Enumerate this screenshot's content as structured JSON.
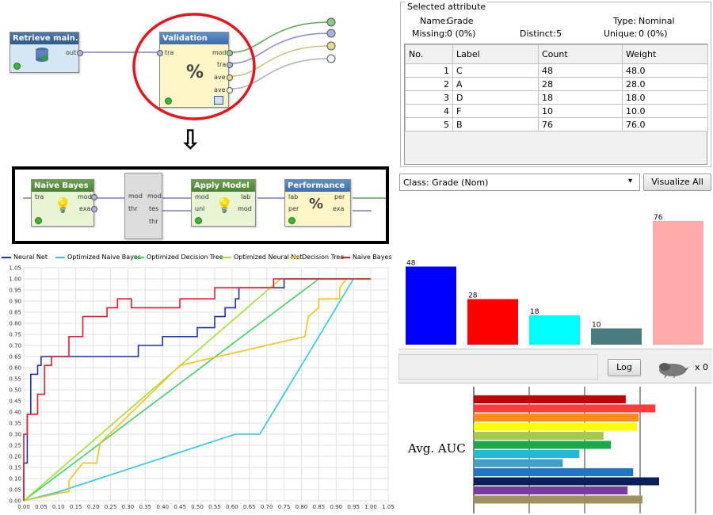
{
  "process": {
    "retrieve": {
      "title": "Retrieve main...",
      "out_port": "out"
    },
    "validation": {
      "title": "Validation",
      "in_ports": [
        "tra"
      ],
      "out_ports": [
        "mod",
        "tra",
        "ave",
        "ave"
      ],
      "icon_glyph": "%"
    },
    "arrow_glyph": "⇩",
    "inner": {
      "naive_bayes": {
        "title": "Naive Bayes",
        "in_ports": [
          "tra"
        ],
        "out_ports": [
          "mod",
          "exa"
        ]
      },
      "split": {
        "in_ports": [
          "mod",
          "thr"
        ],
        "out_ports": [
          "mod",
          "tes",
          "thr"
        ]
      },
      "apply_model": {
        "title": "Apply Model",
        "in_ports": [
          "mod",
          "unl"
        ],
        "out_ports": [
          "lab",
          "mod"
        ]
      },
      "performance": {
        "title": "Performance",
        "in_ports": [
          "lab",
          "per"
        ],
        "out_ports": [
          "per",
          "exa"
        ],
        "icon_glyph": "%"
      }
    }
  },
  "roc_chart": {
    "type": "line",
    "legend": [
      {
        "name": "Neural Net",
        "color": "#1f2fb8"
      },
      {
        "name": "Optimized Naive Bayes",
        "color": "#2ec6e8"
      },
      {
        "name": "Optimized Decision Tree",
        "color": "#3ed16a"
      },
      {
        "name": "Optimized Neural Net",
        "color": "#9ee336"
      },
      {
        "name": "Decision Tree",
        "color": "#f3c21b"
      },
      {
        "name": "Naive Bayes",
        "color": "#e11d2d"
      }
    ],
    "x_ticks": [
      "0.00",
      "0.05",
      "0.10",
      "0.15",
      "0.20",
      "0.25",
      "0.30",
      "0.35",
      "0.40",
      "0.45",
      "0.50",
      "0.55",
      "0.60",
      "0.65",
      "0.70",
      "0.75",
      "0.80",
      "0.85",
      "0.90",
      "0.95",
      "1.00",
      "1.05"
    ],
    "y_ticks": [
      "0.00",
      "0.05",
      "0.10",
      "0.15",
      "0.20",
      "0.25",
      "0.30",
      "0.35",
      "0.40",
      "0.45",
      "0.50",
      "0.55",
      "0.60",
      "0.65",
      "0.70",
      "0.75",
      "0.80",
      "0.85",
      "0.90",
      "0.95",
      "1.00",
      "1.05"
    ],
    "xlim": [
      0,
      1.05
    ],
    "ylim": [
      0,
      1.05
    ],
    "grid": true,
    "series": [
      {
        "name": "Neural Net",
        "color": "#1f2fb8",
        "x": [
          0,
          0,
          0.01,
          0.01,
          0.02,
          0.02,
          0.04,
          0.04,
          0.05,
          0.05,
          0.33,
          0.33,
          0.4,
          0.4,
          0.5,
          0.5,
          0.55,
          0.55,
          0.58,
          0.58,
          0.61,
          0.61,
          0.62,
          0.62,
          0.75,
          0.75,
          0.85,
          1.0
        ],
        "y": [
          0,
          0.17,
          0.17,
          0.39,
          0.39,
          0.57,
          0.57,
          0.61,
          0.61,
          0.65,
          0.65,
          0.7,
          0.7,
          0.74,
          0.74,
          0.78,
          0.78,
          0.83,
          0.83,
          0.87,
          0.87,
          0.91,
          0.91,
          0.96,
          0.96,
          1.0,
          1.0,
          1.0
        ]
      },
      {
        "name": "Optimized Naive Bayes",
        "color": "#2ec6e8",
        "x": [
          0,
          0.1,
          0.61,
          0.68,
          0.8,
          0.95,
          1.0
        ],
        "y": [
          0,
          0.04,
          0.3,
          0.3,
          0.61,
          1.0,
          1.0
        ]
      },
      {
        "name": "Optimized Decision Tree",
        "color": "#3ed16a",
        "x": [
          0,
          0.85,
          1.0
        ],
        "y": [
          0,
          1.0,
          1.0
        ]
      },
      {
        "name": "Optimized Neural Net",
        "color": "#9ee336",
        "x": [
          0,
          0.74,
          1.0
        ],
        "y": [
          0,
          1.0,
          1.0
        ]
      },
      {
        "name": "Decision Tree",
        "color": "#f3c21b",
        "x": [
          0,
          0.12,
          0.13,
          0.13,
          0.17,
          0.17,
          0.21,
          0.22,
          0.45,
          0.81,
          0.82,
          0.85,
          0.85,
          0.91,
          0.91,
          0.93,
          1.0
        ],
        "y": [
          0,
          0.04,
          0.04,
          0.09,
          0.17,
          0.17,
          0.17,
          0.26,
          0.61,
          0.74,
          0.83,
          0.87,
          0.91,
          0.91,
          0.96,
          1.0,
          1.0
        ]
      },
      {
        "name": "Naive Bayes",
        "color": "#e11d2d",
        "x": [
          0,
          0,
          0.01,
          0.01,
          0.04,
          0.04,
          0.06,
          0.06,
          0.08,
          0.08,
          0.13,
          0.13,
          0.17,
          0.17,
          0.24,
          0.24,
          0.27,
          0.27,
          0.31,
          0.31,
          0.45,
          0.45,
          0.55,
          0.55,
          0.72,
          0.72,
          0.77,
          0.77,
          1.0
        ],
        "y": [
          0,
          0.3,
          0.3,
          0.39,
          0.39,
          0.48,
          0.48,
          0.61,
          0.61,
          0.65,
          0.65,
          0.74,
          0.74,
          0.83,
          0.83,
          0.87,
          0.87,
          0.91,
          0.91,
          0.87,
          0.87,
          0.91,
          0.91,
          0.96,
          0.96,
          1.0,
          1.0,
          1.0,
          1.0
        ]
      }
    ]
  },
  "attribute_panel": {
    "title": "Selected attribute",
    "name_label": "Name:",
    "name_value": "Grade",
    "type_label": "Type:",
    "type_value": "Nominal",
    "missing_label": "Missing:",
    "missing_value": "0 (0%)",
    "distinct_label": "Distinct:",
    "distinct_value": "5",
    "unique_label": "Unique:",
    "unique_value": "0 (0%)",
    "columns": [
      "No.",
      "Label",
      "Count",
      "Weight"
    ],
    "rows": [
      [
        "1",
        "C",
        "48",
        "48.0"
      ],
      [
        "2",
        "A",
        "28",
        "28.0"
      ],
      [
        "3",
        "D",
        "18",
        "18.0"
      ],
      [
        "4",
        "F",
        "10",
        "10.0"
      ],
      [
        "5",
        "B",
        "76",
        "76.0"
      ]
    ]
  },
  "class_select": {
    "value": "Class: Grade (Nom)",
    "visualize_all": "Visualize All"
  },
  "histogram": {
    "type": "bar",
    "categories": [
      "C",
      "A",
      "D",
      "F",
      "B"
    ],
    "values": [
      48,
      28,
      18,
      10,
      76
    ],
    "labels": [
      "48",
      "28",
      "18",
      "10",
      "76"
    ],
    "colors": [
      "#0000ff",
      "#ff0000",
      "#00ffff",
      "#4a7b80",
      "#ffaaaa"
    ]
  },
  "log_bar": {
    "button": "Log",
    "status": "x 0"
  },
  "auc_chart": {
    "type": "bar",
    "ylabel": "Avg. AUC",
    "orientation": "horizontal",
    "values": [
      0.82,
      0.98,
      0.89,
      0.88,
      0.7,
      0.74,
      0.57,
      0.48,
      0.86,
      1.0,
      0.83,
      0.91
    ],
    "colors": [
      "#c00000",
      "#ff3b3b",
      "#ff8c1a",
      "#ffff00",
      "#a6c94a",
      "#1aa84a",
      "#22b8d6",
      "#3da0c4",
      "#1f74c8",
      "#0a1f5c",
      "#7a3aa0",
      "#a09060"
    ]
  }
}
